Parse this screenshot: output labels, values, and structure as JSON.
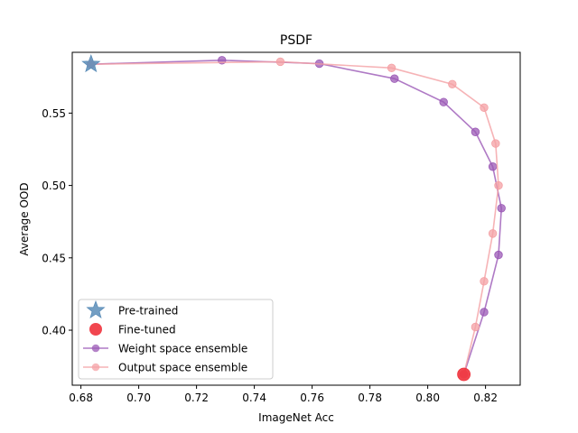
{
  "chart_data": {
    "type": "line",
    "title": "PSDF",
    "xlabel": "ImageNet Acc",
    "ylabel": "Average OOD",
    "xlim": [
      0.677,
      0.832
    ],
    "ylim": [
      0.362,
      0.592
    ],
    "xticks": [
      0.68,
      0.7,
      0.72,
      0.74,
      0.76,
      0.78,
      0.8,
      0.82
    ],
    "xtick_labels": [
      "0.68",
      "0.70",
      "0.72",
      "0.74",
      "0.76",
      "0.78",
      "0.80",
      "0.82"
    ],
    "yticks": [
      0.4,
      0.45,
      0.5,
      0.55
    ],
    "ytick_labels": [
      "0.40",
      "0.45",
      "0.50",
      "0.55"
    ],
    "legend_position": "lower-left",
    "series": [
      {
        "name": "Weight space ensemble",
        "color": "#9b59b6",
        "marker": "circle",
        "x": [
          0.6835,
          0.7288,
          0.7625,
          0.7885,
          0.8055,
          0.8165,
          0.8225,
          0.8255,
          0.8245,
          0.8195,
          0.8125
        ],
        "y": [
          0.5838,
          0.5865,
          0.5842,
          0.5738,
          0.5576,
          0.537,
          0.513,
          0.4843,
          0.452,
          0.4125,
          0.3695
        ]
      },
      {
        "name": "Output space ensemble",
        "color": "#f4a0a4",
        "marker": "circle",
        "x": [
          0.6835,
          0.749,
          0.7875,
          0.8085,
          0.8195,
          0.8235,
          0.8245,
          0.8225,
          0.8195,
          0.8165,
          0.8125
        ],
        "y": [
          0.5838,
          0.5855,
          0.5812,
          0.57,
          0.5538,
          0.529,
          0.5,
          0.4668,
          0.4338,
          0.4022,
          0.3695
        ]
      },
      {
        "name": "Pre-trained",
        "color": "#5b8db8",
        "marker": "star",
        "x": [
          0.6835
        ],
        "y": [
          0.5838
        ]
      },
      {
        "name": "Fine-tuned",
        "color": "#f0323c",
        "marker": "circle-large",
        "x": [
          0.8125
        ],
        "y": [
          0.3695
        ]
      }
    ],
    "legend": [
      "Pre-trained",
      "Fine-tuned",
      "Weight space ensemble",
      "Output space ensemble"
    ]
  }
}
